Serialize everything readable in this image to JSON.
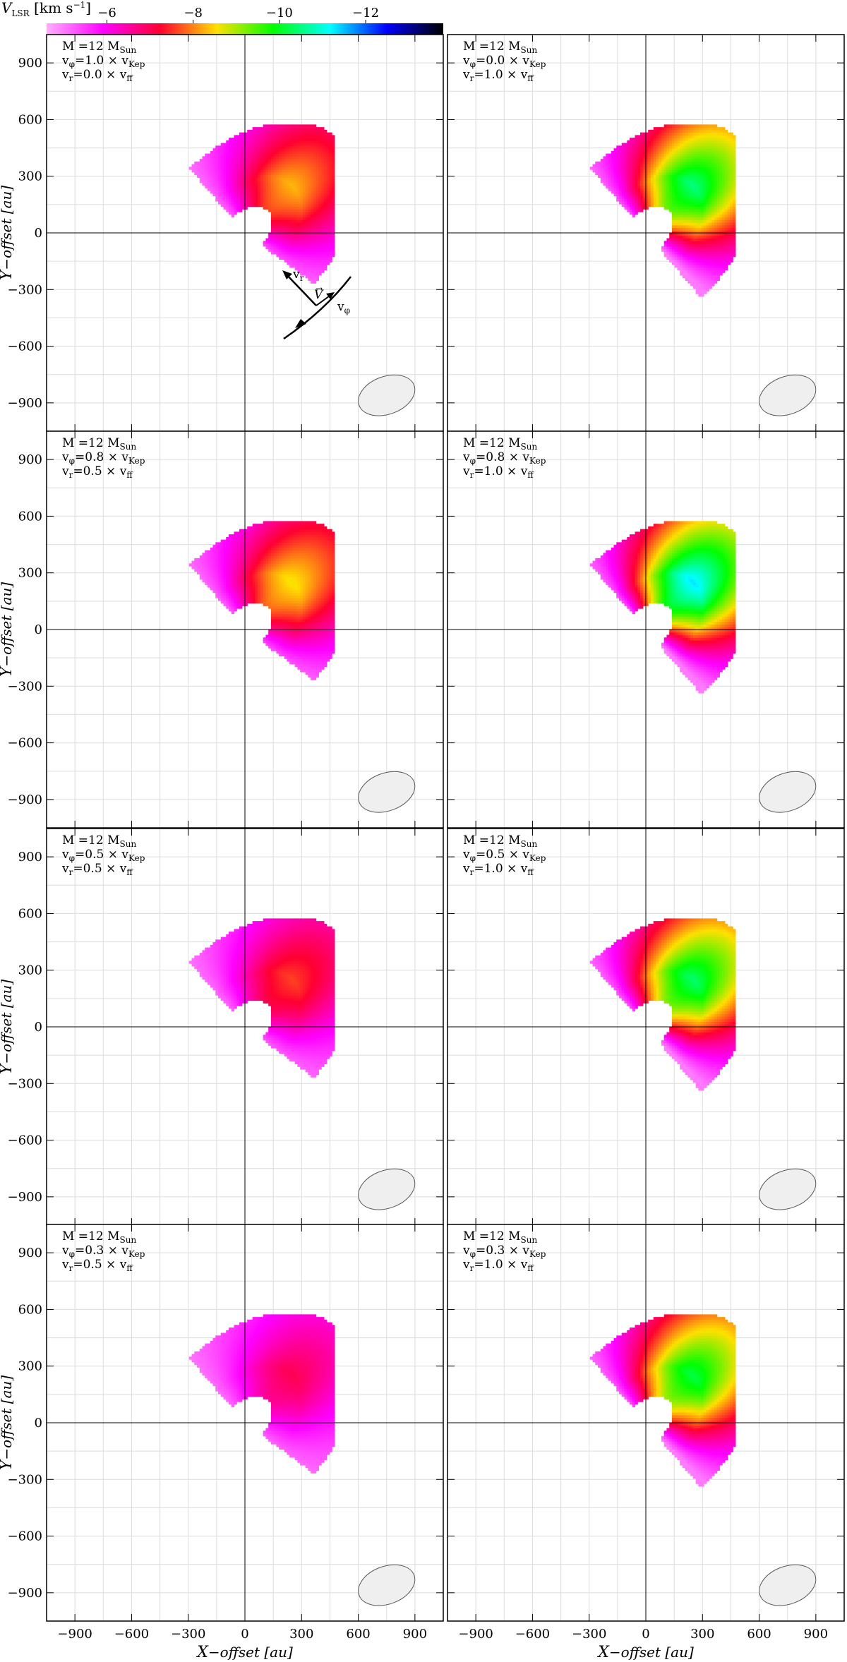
{
  "colorbar": {
    "label_main": "V",
    "label_sub": "LSR",
    "label_unit_a": " [km s",
    "label_unit_sup": "−1",
    "label_unit_b": "]",
    "ticks": [
      {
        "value": -6,
        "label": "−6"
      },
      {
        "value": -8,
        "label": "−8"
      },
      {
        "value": -10,
        "label": "−10"
      },
      {
        "value": -12,
        "label": "−12"
      }
    ],
    "range": [
      -4.6,
      -13.8
    ],
    "stops": [
      "#ffb0ff",
      "#ff00ff",
      "#ff0030",
      "#ffe000",
      "#00ff00",
      "#00ffff",
      "#0000ff",
      "#000000"
    ]
  },
  "axes": {
    "xlabel_main": "X",
    "xlabel_rest": "−offset [au]",
    "ylabel_main": "Y",
    "ylabel_rest": "−offset [au]",
    "xticks": [
      {
        "v": -900,
        "l": "−900"
      },
      {
        "v": -600,
        "l": "−600"
      },
      {
        "v": -300,
        "l": "−300"
      },
      {
        "v": 0,
        "l": "0"
      },
      {
        "v": 300,
        "l": "300"
      },
      {
        "v": 600,
        "l": "600"
      },
      {
        "v": 900,
        "l": "900"
      }
    ],
    "yticks": [
      {
        "v": 900,
        "l": "900"
      },
      {
        "v": 600,
        "l": "600"
      },
      {
        "v": 300,
        "l": "300"
      },
      {
        "v": 0,
        "l": "0"
      },
      {
        "v": -300,
        "l": "−300"
      },
      {
        "v": -600,
        "l": "−600"
      },
      {
        "v": -900,
        "l": "−900"
      }
    ]
  },
  "vector_diagram": {
    "vr_label": "v",
    "vr_sub": "r",
    "v_label": "V",
    "vphi_label": "v",
    "vphi_sub": "φ"
  },
  "chart_data": {
    "type": "heatmap",
    "quantity": "VLSR [km s−1]",
    "xlim": [
      -1050,
      1050
    ],
    "ylim": [
      -1050,
      1050
    ],
    "grid": true,
    "beam": {
      "x": 750,
      "y": -860,
      "major": 310,
      "minor": 200,
      "pa_deg": 20
    },
    "panels": [
      {
        "mass": "12",
        "vphi": "1.0",
        "vr": "0.0",
        "M": 12,
        "vphi_frac": 1.0,
        "vr_frac": 0.0,
        "vmin": -5,
        "vmax": -8.3
      },
      {
        "mass": "12",
        "vphi": "0.0",
        "vr": "1.0",
        "M": 12,
        "vphi_frac": 0.0,
        "vr_frac": 1.0,
        "vmin": -5,
        "vmax": -10.5
      },
      {
        "mass": "12",
        "vphi": "0.8",
        "vr": "0.5",
        "M": 12,
        "vphi_frac": 0.8,
        "vr_frac": 0.5,
        "vmin": -5,
        "vmax": -8.6
      },
      {
        "mass": "12",
        "vphi": "0.8",
        "vr": "1.0",
        "M": 12,
        "vphi_frac": 0.8,
        "vr_frac": 1.0,
        "vmin": -5,
        "vmax": -11.3
      },
      {
        "mass": "12",
        "vphi": "0.5",
        "vr": "0.5",
        "M": 12,
        "vphi_frac": 0.5,
        "vr_frac": 0.5,
        "vmin": -5,
        "vmax": -7.6
      },
      {
        "mass": "12",
        "vphi": "0.5",
        "vr": "1.0",
        "M": 12,
        "vphi_frac": 0.5,
        "vr_frac": 1.0,
        "vmin": -5,
        "vmax": -10.4
      },
      {
        "mass": "12",
        "vphi": "0.3",
        "vr": "0.5",
        "M": 12,
        "vphi_frac": 0.3,
        "vr_frac": 0.5,
        "vmin": -5,
        "vmax": -7.0
      },
      {
        "mass": "12",
        "vphi": "0.3",
        "vr": "1.0",
        "M": 12,
        "vphi_frac": 0.3,
        "vr_frac": 1.0,
        "vmin": -5,
        "vmax": -10.2
      }
    ]
  }
}
